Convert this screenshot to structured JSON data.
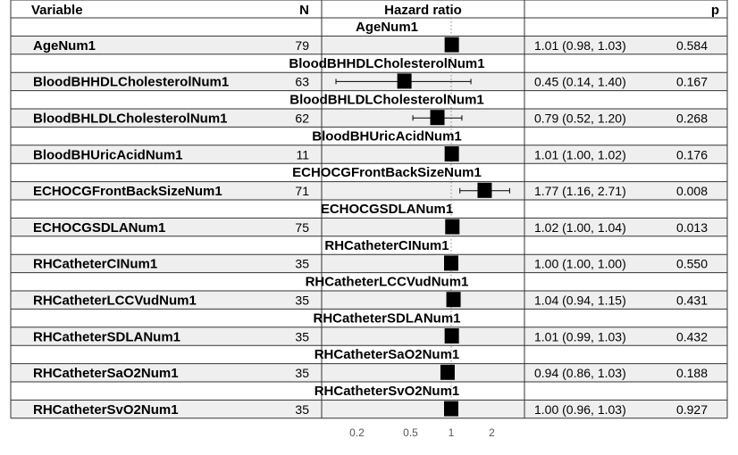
{
  "chart_data": {
    "type": "forest",
    "columns": [
      "Variable",
      "N",
      "Hazard ratio",
      "p"
    ],
    "x_scale": "log",
    "x_ticks": [
      {
        "value": 0.2,
        "label": "0.2"
      },
      {
        "value": 0.5,
        "label": "0.5"
      },
      {
        "value": 1,
        "label": "1"
      },
      {
        "value": 2,
        "label": "2"
      }
    ],
    "reference_line": 1,
    "rows": [
      {
        "group": "AgeNum1",
        "variable": "AgeNum1",
        "n": "79",
        "hr": 1.01,
        "lo": 0.98,
        "hi": 1.03,
        "ci_text": "1.01 (0.98, 1.03)",
        "p": "0.584"
      },
      {
        "group": "BloodBHHDLCholesterolNum1",
        "variable": "BloodBHHDLCholesterolNum1",
        "n": "63",
        "hr": 0.45,
        "lo": 0.14,
        "hi": 1.4,
        "ci_text": "0.45 (0.14, 1.40)",
        "p": "0.167"
      },
      {
        "group": "BloodBHLDLCholesterolNum1",
        "variable": "BloodBHLDLCholesterolNum1",
        "n": "62",
        "hr": 0.79,
        "lo": 0.52,
        "hi": 1.2,
        "ci_text": "0.79 (0.52, 1.20)",
        "p": "0.268"
      },
      {
        "group": "BloodBHUricAcidNum1",
        "variable": "BloodBHUricAcidNum1",
        "n": "11",
        "hr": 1.01,
        "lo": 1.0,
        "hi": 1.02,
        "ci_text": "1.01 (1.00, 1.02)",
        "p": "0.176"
      },
      {
        "group": "ECHOCGFrontBackSizeNum1",
        "variable": "ECHOCGFrontBackSizeNum1",
        "n": "71",
        "hr": 1.77,
        "lo": 1.16,
        "hi": 2.71,
        "ci_text": "1.77 (1.16, 2.71)",
        "p": "0.008"
      },
      {
        "group": "ECHOCGSDLANum1",
        "variable": "ECHOCGSDLANum1",
        "n": "75",
        "hr": 1.02,
        "lo": 1.0,
        "hi": 1.04,
        "ci_text": "1.02 (1.00, 1.04)",
        "p": "0.013"
      },
      {
        "group": "RHCatheterCINum1",
        "variable": "RHCatheterCINum1",
        "n": "35",
        "hr": 1.0,
        "lo": 1.0,
        "hi": 1.0,
        "ci_text": "1.00 (1.00, 1.00)",
        "p": "0.550"
      },
      {
        "group": "RHCatheterLCCVudNum1",
        "variable": "RHCatheterLCCVudNum1",
        "n": "35",
        "hr": 1.04,
        "lo": 0.94,
        "hi": 1.15,
        "ci_text": "1.04 (0.94, 1.15)",
        "p": "0.431"
      },
      {
        "group": "RHCatheterSDLANum1",
        "variable": "RHCatheterSDLANum1",
        "n": "35",
        "hr": 1.01,
        "lo": 0.99,
        "hi": 1.03,
        "ci_text": "1.01 (0.99, 1.03)",
        "p": "0.432"
      },
      {
        "group": "RHCatheterSaO2Num1",
        "variable": "RHCatheterSaO2Num1",
        "n": "35",
        "hr": 0.94,
        "lo": 0.86,
        "hi": 1.03,
        "ci_text": "0.94 (0.86, 1.03)",
        "p": "0.188"
      },
      {
        "group": "RHCatheterSvO2Num1",
        "variable": "RHCatheterSvO2Num1",
        "n": "35",
        "hr": 1.0,
        "lo": 0.96,
        "hi": 1.03,
        "ci_text": "1.00 (0.96, 1.03)",
        "p": "0.927"
      }
    ]
  }
}
